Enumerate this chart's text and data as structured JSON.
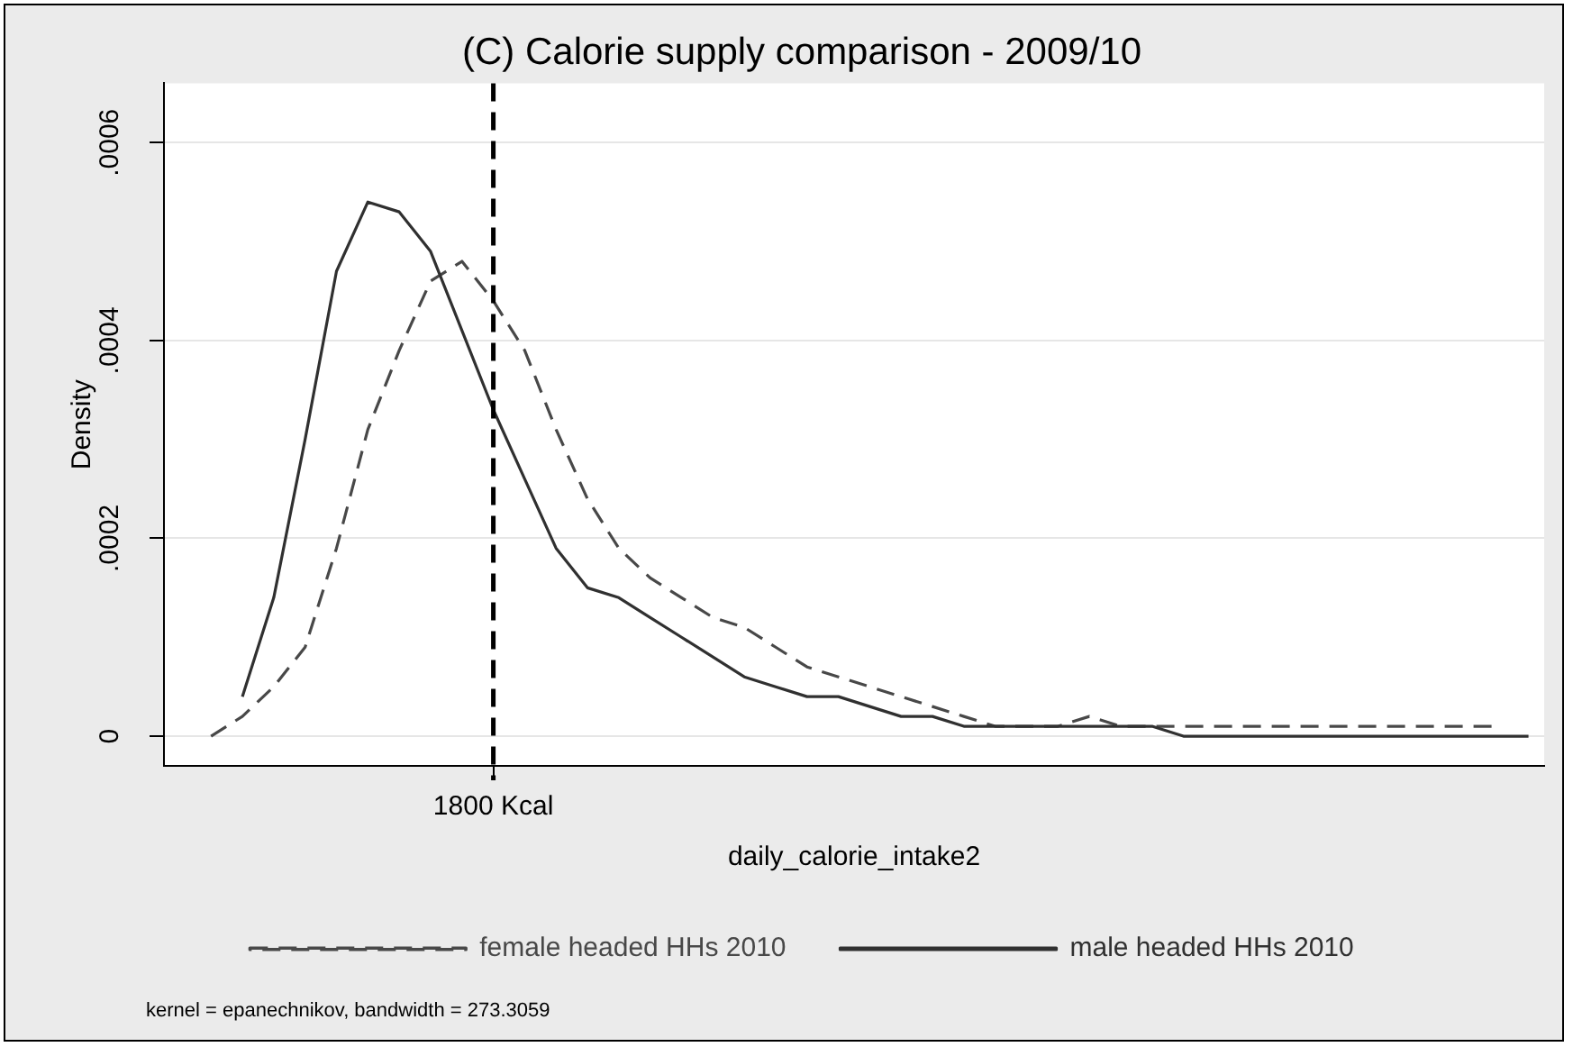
{
  "chart_data": {
    "type": "line",
    "title": "(C) Calorie supply comparison - 2009/10",
    "xlabel": "daily_calorie_intake2",
    "ylabel": "Density",
    "categories": [
      null,
      null,
      null,
      null,
      null,
      null,
      null,
      null,
      null,
      null,
      "1800 Kcal",
      null,
      null,
      null,
      null,
      null,
      null,
      null,
      null,
      null,
      null,
      null,
      null,
      null,
      null,
      null,
      null,
      null,
      null,
      null,
      null,
      null,
      null,
      null,
      null,
      null,
      null,
      null,
      null,
      null,
      null,
      null,
      null,
      null
    ],
    "ylim": [
      -3e-05,
      0.00066
    ],
    "yticks": [
      {
        "value": 0,
        "label": "0"
      },
      {
        "value": 0.0002,
        "label": ".0002"
      },
      {
        "value": 0.0004,
        "label": ".0004"
      },
      {
        "value": 0.0006,
        "label": ".0006"
      }
    ],
    "grid": "y",
    "legend": "bottom",
    "marker": "none",
    "ref_lines": [
      {
        "axis": "x",
        "value": "1800 Kcal",
        "line_style": "dashed",
        "color": "#000000"
      }
    ],
    "annotations": [
      "kernel = epanechnikov, bandwidth = 273.3059"
    ],
    "series": [
      {
        "name": "female headed HHs 2010",
        "color": "#484848",
        "line_style": "dashed",
        "values": [
          null,
          0,
          2e-05,
          5e-05,
          9e-05,
          0.00019,
          0.00031,
          0.00039,
          0.00046,
          0.00048,
          0.00044,
          0.00039,
          0.00031,
          0.00024,
          0.00019,
          0.00016,
          0.00014,
          0.00012,
          0.00011,
          9e-05,
          7e-05,
          6e-05,
          5e-05,
          4e-05,
          3e-05,
          2e-05,
          1e-05,
          1e-05,
          1e-05,
          2e-05,
          1e-05,
          1e-05,
          1e-05,
          1e-05,
          1e-05,
          1e-05,
          1e-05,
          1e-05,
          1e-05,
          1e-05,
          1e-05,
          1e-05,
          1e-05,
          null
        ]
      },
      {
        "name": "male headed HHs 2010",
        "color": "#303030",
        "line_style": "solid",
        "values": [
          null,
          null,
          4e-05,
          0.00014,
          0.0003,
          0.00047,
          0.00054,
          0.00053,
          0.00049,
          0.00041,
          0.00033,
          0.00026,
          0.00019,
          0.00015,
          0.00014,
          0.00012,
          0.0001,
          8e-05,
          6e-05,
          5e-05,
          4e-05,
          4e-05,
          3e-05,
          2e-05,
          2e-05,
          1e-05,
          1e-05,
          1e-05,
          1e-05,
          1e-05,
          1e-05,
          1e-05,
          0,
          0,
          0,
          0,
          0,
          0,
          0,
          0,
          0,
          0,
          0,
          0
        ]
      }
    ]
  }
}
